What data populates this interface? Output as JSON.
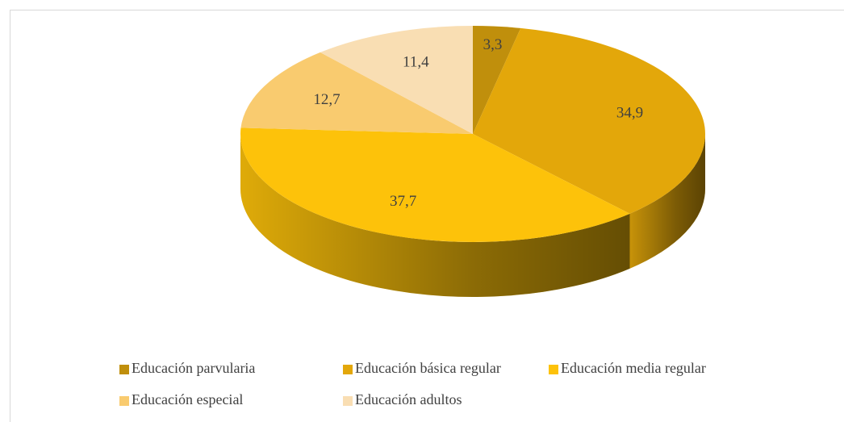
{
  "chart_data": {
    "type": "pie3d",
    "categories": [
      "Educación parvularia",
      "Educación básica regular",
      "Educación media regular",
      "Educación especial",
      "Educación adultos"
    ],
    "values": [
      3.3,
      34.9,
      37.7,
      12.7,
      11.4
    ],
    "value_labels": [
      "3,3",
      "34,9",
      "37,7",
      "12,7",
      "11,4"
    ],
    "colors": [
      "#c08f0c",
      "#e3a70a",
      "#fdc20a",
      "#f9cb6f",
      "#f9deb3"
    ],
    "legend": "bottom"
  }
}
